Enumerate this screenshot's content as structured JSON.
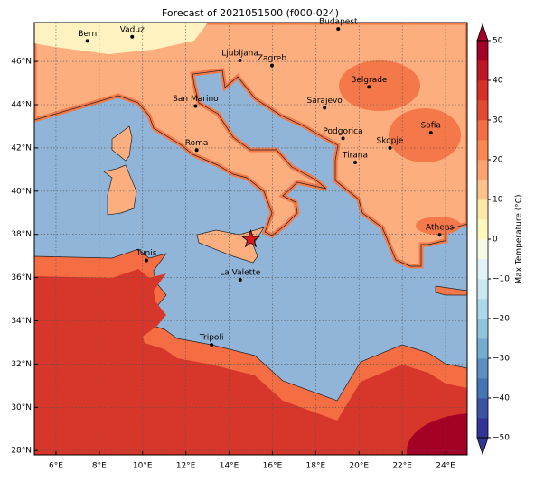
{
  "title": "Forecast of 2021051500 (f000-024)",
  "map": {
    "xlim": [
      5,
      25
    ],
    "ylim": [
      27.8,
      47.8
    ],
    "grid": true,
    "xticks": [
      {
        "value": 6,
        "label": "6°E"
      },
      {
        "value": 8,
        "label": "8°E"
      },
      {
        "value": 10,
        "label": "10°E"
      },
      {
        "value": 12,
        "label": "12°E"
      },
      {
        "value": 14,
        "label": "14°E"
      },
      {
        "value": 16,
        "label": "16°E"
      },
      {
        "value": 18,
        "label": "18°E"
      },
      {
        "value": 20,
        "label": "20°E"
      },
      {
        "value": 22,
        "label": "22°E"
      },
      {
        "value": 24,
        "label": "24°E"
      }
    ],
    "yticks": [
      {
        "value": 28,
        "label": "28°N"
      },
      {
        "value": 30,
        "label": "30°N"
      },
      {
        "value": 32,
        "label": "32°N"
      },
      {
        "value": 34,
        "label": "34°N"
      },
      {
        "value": 36,
        "label": "36°N"
      },
      {
        "value": 38,
        "label": "38°N"
      },
      {
        "value": 40,
        "label": "40°N"
      },
      {
        "value": 42,
        "label": "42°N"
      },
      {
        "value": 44,
        "label": "44°N"
      },
      {
        "value": 46,
        "label": "46°N"
      }
    ]
  },
  "cities": [
    {
      "name": "Bern",
      "lon": 7.45,
      "lat": 46.95
    },
    {
      "name": "Vaduz",
      "lon": 9.52,
      "lat": 47.14
    },
    {
      "name": "Budapest",
      "lon": 19.04,
      "lat": 47.5
    },
    {
      "name": "Ljubljana",
      "lon": 14.5,
      "lat": 46.05
    },
    {
      "name": "Zagreb",
      "lon": 15.98,
      "lat": 45.81
    },
    {
      "name": "Belgrade",
      "lon": 20.46,
      "lat": 44.82
    },
    {
      "name": "San Marino",
      "lon": 12.45,
      "lat": 43.94
    },
    {
      "name": "Sarajevo",
      "lon": 18.41,
      "lat": 43.86
    },
    {
      "name": "Sofia",
      "lon": 23.32,
      "lat": 42.7
    },
    {
      "name": "Podgorica",
      "lon": 19.26,
      "lat": 42.44
    },
    {
      "name": "Skopje",
      "lon": 21.43,
      "lat": 42.0
    },
    {
      "name": "Roma",
      "lon": 12.5,
      "lat": 41.9
    },
    {
      "name": "Tirana",
      "lon": 19.82,
      "lat": 41.33
    },
    {
      "name": "Athens",
      "lon": 23.73,
      "lat": 37.98
    },
    {
      "name": "Tunis",
      "lon": 10.18,
      "lat": 36.8
    },
    {
      "name": "La Valette",
      "lon": 14.51,
      "lat": 35.9
    },
    {
      "name": "Tripoli",
      "lon": 13.19,
      "lat": 32.89
    }
  ],
  "marker": {
    "lon": 15.0,
    "lat": 37.77,
    "color": "#d7191c"
  },
  "colorbar": {
    "label": "Max Temperature (°C)",
    "lim": [
      -50,
      50
    ],
    "ticks": [
      {
        "value": -50,
        "label": "−50"
      },
      {
        "value": -40,
        "label": "−40"
      },
      {
        "value": -30,
        "label": "−30"
      },
      {
        "value": -20,
        "label": "−20"
      },
      {
        "value": -10,
        "label": "−10"
      },
      0,
      10,
      20,
      30,
      40,
      50
    ],
    "colors": [
      "#313695",
      "#3a54a4",
      "#4575b4",
      "#5e8fc2",
      "#74add1",
      "#92c3dd",
      "#abd9e9",
      "#c9e8f2",
      "#e0f3f8",
      "#f5fbe4",
      "#fff7bc",
      "#fee8a8",
      "#fdc28c",
      "#fca46f",
      "#f88750",
      "#f46d43",
      "#e34a33",
      "#d73027",
      "#bd1726",
      "#a50026"
    ]
  }
}
